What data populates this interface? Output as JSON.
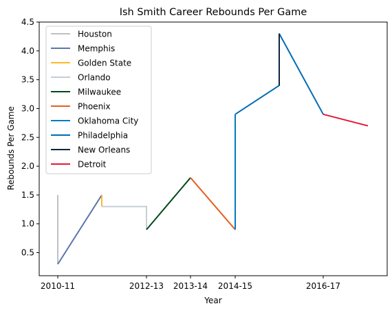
{
  "chart_data": {
    "type": "line",
    "title": "Ish Smith Career Rebounds Per Game",
    "xlabel": "Year",
    "ylabel": "Rebounds Per Game",
    "x_ticks": [
      "2010-11",
      "2012-13",
      "2013-14",
      "2014-15",
      "2016-17"
    ],
    "y_ticks": [
      "0.5",
      "1.0",
      "1.5",
      "2.0",
      "2.5",
      "3.0",
      "3.5",
      "4.0",
      "4.5"
    ],
    "ylim": [
      0.1,
      4.5
    ],
    "grid": false,
    "legend_position": "upper-left",
    "series": [
      {
        "name": "Houston",
        "color": "#BEC0C2",
        "points": [
          {
            "x": "2010-11",
            "y": 1.5
          },
          {
            "x": "2010-11",
            "y": 0.3
          }
        ]
      },
      {
        "name": "Memphis",
        "color": "#5D76A9",
        "points": [
          {
            "x": "2010-11",
            "y": 0.3
          },
          {
            "x": "2011-12",
            "y": 1.5
          }
        ]
      },
      {
        "name": "Golden State",
        "color": "#FDB927",
        "points": [
          {
            "x": "2011-12",
            "y": 1.5
          },
          {
            "x": "2011-12",
            "y": 1.3
          }
        ]
      },
      {
        "name": "Orlando",
        "color": "#C4CED4",
        "points": [
          {
            "x": "2011-12",
            "y": 1.3
          },
          {
            "x": "2012-13",
            "y": 1.3
          },
          {
            "x": "2012-13",
            "y": 0.9
          }
        ]
      },
      {
        "name": "Milwaukee",
        "color": "#00471B",
        "points": [
          {
            "x": "2012-13",
            "y": 0.9
          },
          {
            "x": "2013-14",
            "y": 1.8
          }
        ]
      },
      {
        "name": "Phoenix",
        "color": "#E56020",
        "points": [
          {
            "x": "2013-14",
            "y": 1.8
          },
          {
            "x": "2014-15",
            "y": 0.9
          }
        ]
      },
      {
        "name": "Oklahoma City",
        "color": "#007AC1",
        "points": [
          {
            "x": "2014-15",
            "y": 0.9
          },
          {
            "x": "2014-15",
            "y": 2.9
          }
        ]
      },
      {
        "name": "Philadelphia",
        "color": "#006BB6",
        "points": [
          {
            "x": "2014-15",
            "y": 2.9
          },
          {
            "x": "2015-16",
            "y": 3.4
          },
          {
            "x": "2015-16",
            "y": 4.3
          },
          {
            "x": "2016-17",
            "y": 2.9
          }
        ]
      },
      {
        "name": "New Orleans",
        "color": "#0C2340",
        "points": [
          {
            "x": "2015-16",
            "y": 3.4
          },
          {
            "x": "2015-16",
            "y": 4.3
          }
        ]
      },
      {
        "name": "Detroit",
        "color": "#E31837",
        "points": [
          {
            "x": "2016-17",
            "y": 2.9
          },
          {
            "x": "2017-18",
            "y": 2.7
          }
        ]
      }
    ]
  }
}
